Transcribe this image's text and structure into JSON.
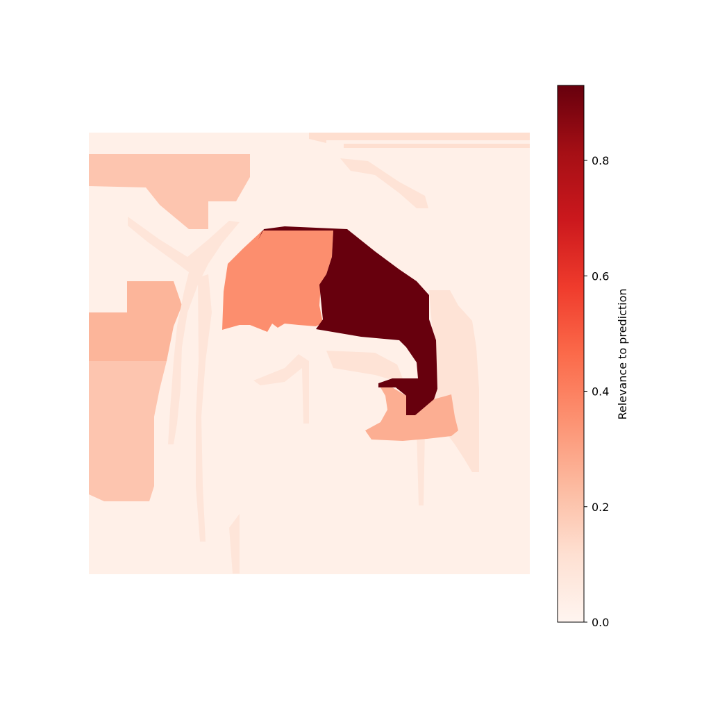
{
  "chart_data": {
    "type": "heatmap",
    "title": "",
    "xlabel": "",
    "ylabel": "",
    "axes_visible": false,
    "grid": false,
    "colormap": "Reds",
    "value_range": [
      0.0,
      0.93
    ],
    "background_value": 0.03,
    "regions": [
      {
        "name": "upper-left-block",
        "value": 0.2
      },
      {
        "name": "left-mid-block",
        "value": 0.25
      },
      {
        "name": "left-lower-block",
        "value": 0.2
      },
      {
        "name": "center-orange-region",
        "value": 0.36
      },
      {
        "name": "dark-red-region",
        "value": 0.93
      },
      {
        "name": "lower-right-salmon-region",
        "value": 0.27
      },
      {
        "name": "right-faint-region",
        "value": 0.1
      },
      {
        "name": "top-right-faint-strips",
        "value": 0.12
      },
      {
        "name": "thin-streaks",
        "value": 0.09
      }
    ],
    "colorbar": {
      "label": "Relevance to prediction",
      "placement": "right",
      "ticks": [
        {
          "value": 0.0,
          "label": "0.0"
        },
        {
          "value": 0.2,
          "label": "0.2"
        },
        {
          "value": 0.4,
          "label": "0.4"
        },
        {
          "value": 0.6,
          "label": "0.6"
        },
        {
          "value": 0.8,
          "label": "0.8"
        }
      ]
    }
  }
}
